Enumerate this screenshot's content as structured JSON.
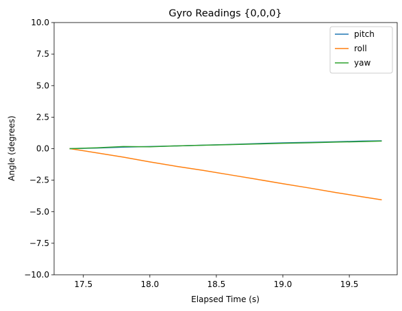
{
  "chart_data": {
    "type": "line",
    "title": "Gyro Readings {0,0,0}",
    "xlabel": "Elapsed Time (s)",
    "ylabel": "Angle (degrees)",
    "xlim": [
      17.28,
      19.86
    ],
    "ylim": [
      -10,
      10
    ],
    "xticks": [
      17.5,
      18.0,
      18.5,
      19.0,
      19.5
    ],
    "xtick_labels": [
      "17.5",
      "18.0",
      "18.5",
      "19.0",
      "19.5"
    ],
    "yticks": [
      -10,
      -7.5,
      -5,
      -2.5,
      0,
      2.5,
      5,
      7.5,
      10
    ],
    "ytick_labels": [
      "−10.0",
      "−7.5",
      "−5.0",
      "−2.5",
      "0.0",
      "2.5",
      "5.0",
      "7.5",
      "10.0"
    ],
    "grid": false,
    "legend_position": "top-right",
    "series": [
      {
        "name": "pitch",
        "color": "#1f77b4",
        "x": [
          17.4,
          17.6,
          17.8,
          18.0,
          18.2,
          18.4,
          18.6,
          18.8,
          19.0,
          19.2,
          19.4,
          19.6,
          19.74
        ],
        "y": [
          0.0,
          0.05,
          0.12,
          0.17,
          0.22,
          0.28,
          0.33,
          0.4,
          0.46,
          0.5,
          0.55,
          0.6,
          0.62
        ]
      },
      {
        "name": "roll",
        "color": "#ff7f0e",
        "x": [
          17.4,
          17.6,
          17.8,
          18.0,
          18.2,
          18.4,
          18.6,
          18.8,
          19.0,
          19.2,
          19.4,
          19.6,
          19.74
        ],
        "y": [
          0.0,
          -0.33,
          -0.67,
          -1.05,
          -1.4,
          -1.72,
          -2.07,
          -2.42,
          -2.78,
          -3.12,
          -3.48,
          -3.82,
          -4.05
        ]
      },
      {
        "name": "yaw",
        "color": "#2ca02c",
        "x": [
          17.4,
          17.6,
          17.8,
          18.0,
          18.2,
          18.4,
          18.6,
          18.8,
          19.0,
          19.2,
          19.4,
          19.6,
          19.74
        ],
        "y": [
          0.0,
          0.07,
          0.17,
          0.15,
          0.22,
          0.27,
          0.32,
          0.37,
          0.43,
          0.47,
          0.52,
          0.56,
          0.6
        ]
      }
    ]
  }
}
